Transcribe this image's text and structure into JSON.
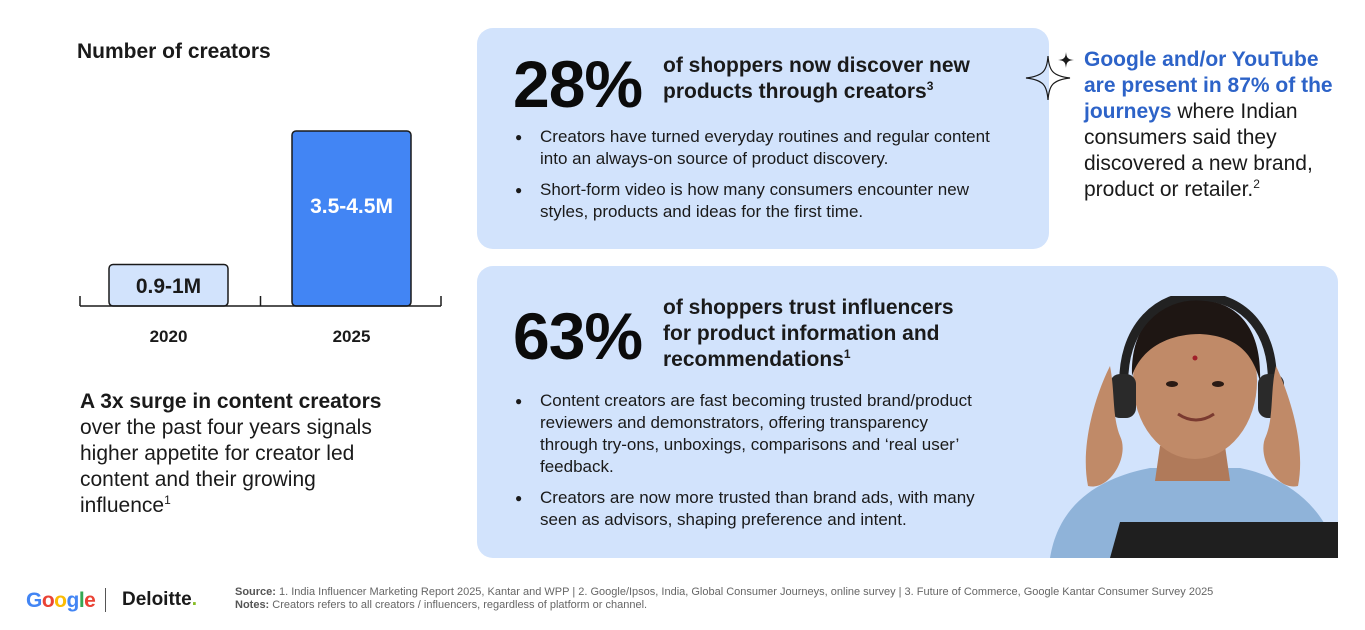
{
  "chart_data": {
    "type": "bar",
    "title": "Number of creators",
    "categories": [
      "2020",
      "2025"
    ],
    "values": [
      0.95,
      4.0
    ],
    "data_labels": [
      "0.9-1M",
      "3.5-4.5M"
    ],
    "colors": [
      "#d2e3fc",
      "#4285f4"
    ],
    "label_colors": [
      "#1a1a1a",
      "#ffffff"
    ],
    "ylim": [
      0,
      4.8
    ],
    "grid": false
  },
  "surge": {
    "bold": "A 3x surge in content creators",
    "rest": " over the past four years signals higher appetite for creator led content and their growing influence",
    "sup": "1"
  },
  "card1": {
    "stat": "28%",
    "headline": "of shoppers now discover new products through creators",
    "sup": "3",
    "bullets": [
      "Creators have turned everyday routines and regular content into an always-on source of product discovery.",
      "Short-form video is how many consumers encounter new styles, products and ideas for the first time."
    ]
  },
  "google_stat": {
    "bold": "Google and/or YouTube are present in 87% of the journeys",
    "rest": " where Indian consumers said they discovered a new brand, product or retailer.",
    "sup": "2",
    "icon": "sparkle-icon"
  },
  "card2": {
    "stat": "63%",
    "headline": "of shoppers trust influencers for product information and recommendations",
    "sup": "1",
    "bullets": [
      "Content creators are fast becoming trusted brand/product reviewers and demonstrators, offering transparency through try-ons, unboxings, comparisons and ‘real user’ feedback.",
      "Creators are now more trusted than brand ads, with many seen as advisors, shaping preference and intent."
    ]
  },
  "footer": {
    "google_letters": [
      "G",
      "o",
      "o",
      "g",
      "l",
      "e"
    ],
    "google_colors": [
      "#4285f4",
      "#ea4335",
      "#fbbc05",
      "#4285f4",
      "#34a853",
      "#ea4335"
    ],
    "deloitte": "Deloitte",
    "deloitte_dot": ".",
    "source_label": "Source:",
    "source_text": " 1. India Influencer Marketing Report 2025, Kantar and WPP | 2. Google/Ipsos, India, Global Consumer Journeys, online survey | 3. Future of Commerce, Google Kantar Consumer Survey 2025",
    "notes_label": "Notes:",
    "notes_text": " Creators refers to all creators / influencers, regardless of platform or channel."
  }
}
